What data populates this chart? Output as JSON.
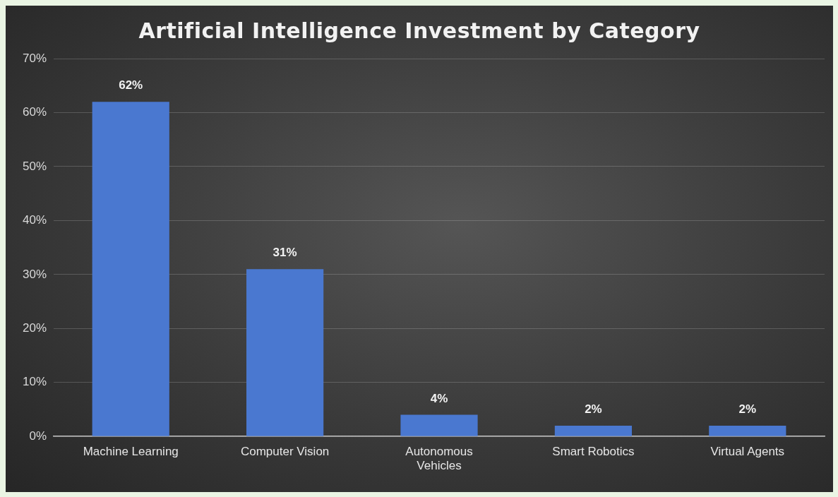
{
  "chart_data": {
    "type": "bar",
    "title": "Artificial Intelligence Investment by Category",
    "categories": [
      "Machine Learning",
      "Computer Vision",
      "Autonomous Vehicles",
      "Smart Robotics",
      "Virtual Agents"
    ],
    "values": [
      62,
      31,
      4,
      2,
      2
    ],
    "value_labels": [
      "62%",
      "31%",
      "4%",
      "2%",
      "2%"
    ],
    "color": "#4a78d0",
    "ylim": [
      0,
      70
    ],
    "yticks": [
      {
        "value": 0,
        "label": "0%"
      },
      {
        "value": 10,
        "label": "10%"
      },
      {
        "value": 20,
        "label": "20%"
      },
      {
        "value": 30,
        "label": "30%"
      },
      {
        "value": 40,
        "label": "40%"
      },
      {
        "value": 50,
        "label": "50%"
      },
      {
        "value": 60,
        "label": "60%"
      },
      {
        "value": 70,
        "label": "70%"
      }
    ],
    "grid": "y"
  }
}
